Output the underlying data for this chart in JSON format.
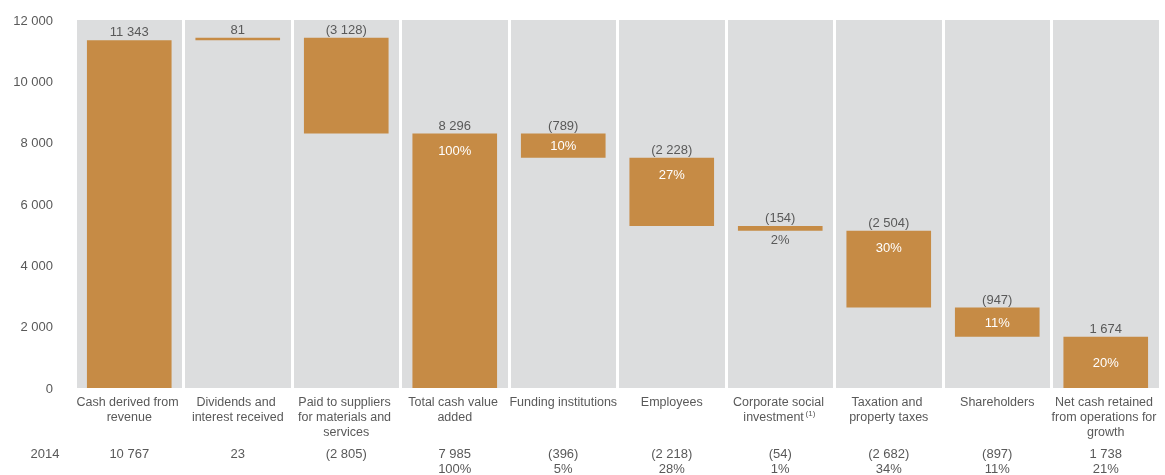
{
  "chart_data": {
    "type": "bar",
    "categories": [
      "Cash derived from revenue",
      "Dividends and interest received",
      "Paid to suppliers for materials and services",
      "Total cash value added",
      "Funding institutions",
      "Employees",
      "Corporate social investment$^{(1)}$",
      "Taxation and property taxes",
      "Shareholders",
      "Net cash retained from operations for growth"
    ],
    "values": [
      11343,
      81,
      -3128,
      8296,
      -789,
      -2228,
      -154,
      -2504,
      -947,
      1674
    ],
    "base": [
      0,
      11343,
      11424,
      0,
      8296,
      7507,
      5279,
      5125,
      2621,
      0
    ],
    "value_labels": [
      "11 343",
      "81",
      "(3 128)",
      "8 296",
      "(789)",
      "(2 228)",
      "(154)",
      "(2 504)",
      "(947)",
      "1 674"
    ],
    "color": "#c68b45",
    "ylim": [
      0,
      12000
    ],
    "yticks": [
      0,
      {
        "value": 2000,
        "label": "2 000"
      },
      {
        "value": 4000,
        "label": "4 000"
      },
      {
        "value": 6000,
        "label": "6 000"
      },
      {
        "value": 8000,
        "label": "8 000"
      },
      {
        "value": 10000,
        "label": "10 000"
      },
      {
        "value": 12000,
        "label": "12 000"
      }
    ],
    "grid": false,
    "annotations": [
      "100%",
      "10%",
      "27%",
      "2%",
      "30%",
      "11%",
      "20%",
      "2014",
      "10 767",
      "23",
      "(2 805)",
      "7 985\n100%",
      "(396)\n5%",
      "(2 218)\n28%",
      "(54)\n1%",
      "(2 682)\n34%",
      "(897)\n11%",
      "1 738\n21%"
    ]
  }
}
